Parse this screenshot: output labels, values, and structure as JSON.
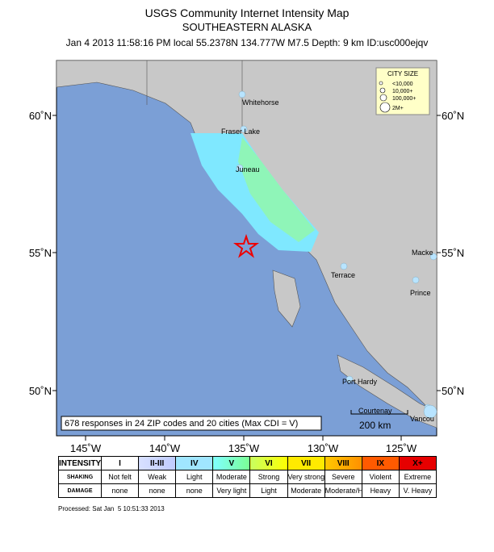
{
  "header": {
    "title": "USGS Community Internet Intensity Map",
    "region": "SOUTHEASTERN ALASKA",
    "event": "Jan 4 2013 11:58:16 PM local 55.2378N 134.777W M7.5 Depth: 9 km ID:usc000ejqv"
  },
  "map": {
    "lat_labels": [
      "60˚N",
      "55˚N",
      "50˚N"
    ],
    "lon_labels": [
      "145˚W",
      "140˚W",
      "135˚W",
      "130˚W",
      "125˚W"
    ],
    "cities": [
      "Whitehorse",
      "Fraser Lake",
      "Juneau",
      "Macke",
      "Terrace",
      "Prince",
      "Port Hardy",
      "Courtenay",
      "Vancou"
    ],
    "city_size": {
      "title": "CITY SIZE",
      "sizes": [
        "<10,000",
        "10,000+",
        "100,000+",
        "2M+"
      ]
    },
    "responses": "678 responses in 24 ZIP codes and 20 cities (Max CDI = V)",
    "scale": "200 km"
  },
  "legend": {
    "rows": [
      {
        "label": "INTENSITY",
        "cells": [
          "I",
          "II-III",
          "IV",
          "V",
          "VI",
          "VII",
          "VIII",
          "IX",
          "X+"
        ]
      },
      {
        "label": "SHAKING",
        "cells": [
          "Not felt",
          "Weak",
          "Light",
          "Moderate",
          "Strong",
          "Very strong",
          "Severe",
          "Violent",
          "Extreme"
        ]
      },
      {
        "label": "DAMAGE",
        "cells": [
          "none",
          "none",
          "none",
          "Very light",
          "Light",
          "Moderate",
          "Moderate/Heavy",
          "Heavy",
          "V. Heavy"
        ]
      }
    ]
  },
  "footer": "Processed: Sat Jan  5 10:51:33 2013"
}
